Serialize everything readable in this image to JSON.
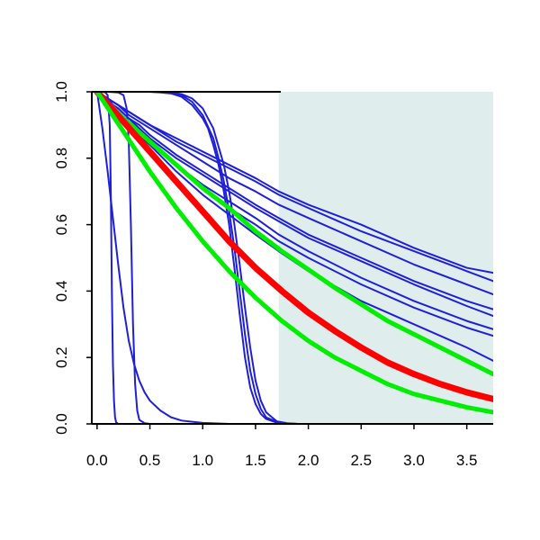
{
  "chart_data": {
    "type": "line",
    "title": "",
    "xlabel": "",
    "ylabel": "",
    "xlim": [
      -0.05,
      3.75
    ],
    "ylim": [
      0.0,
      1.0
    ],
    "x_ticks": [
      "0.0",
      "0.5",
      "1.0",
      "1.5",
      "2.0",
      "2.5",
      "3.0",
      "3.5"
    ],
    "y_ticks": [
      "0.0",
      "0.2",
      "0.4",
      "0.6",
      "0.8",
      "1.0"
    ],
    "shaded_region": {
      "x": [
        1.72,
        3.75
      ],
      "y": [
        0.0,
        1.0
      ],
      "color": "#e0eded"
    },
    "colors": {
      "thin_curves": "#1f1fd8",
      "main_curve": "#ff0000",
      "bound_curves": "#00ee00",
      "axes": "#000000"
    },
    "grid": false,
    "legend": "none",
    "series": [
      {
        "group": "thin",
        "x": [
          0.0,
          0.1,
          0.15,
          0.2,
          0.3,
          0.4,
          0.5,
          0.75,
          1.0,
          1.25,
          1.5,
          1.72,
          2.0,
          2.5,
          3.0,
          3.5,
          3.75
        ],
        "y": [
          1.0,
          0.98,
          0.97,
          0.96,
          0.94,
          0.92,
          0.9,
          0.86,
          0.82,
          0.78,
          0.74,
          0.7,
          0.66,
          0.6,
          0.53,
          0.47,
          0.455
        ]
      },
      {
        "group": "thin",
        "x": [
          0.0,
          0.1,
          0.15,
          0.2,
          0.3,
          0.4,
          0.5,
          0.75,
          1.0,
          1.25,
          1.5,
          1.72,
          2.0,
          2.5,
          3.0,
          3.5,
          3.75
        ],
        "y": [
          1.0,
          0.98,
          0.97,
          0.96,
          0.94,
          0.92,
          0.9,
          0.85,
          0.81,
          0.77,
          0.73,
          0.69,
          0.65,
          0.58,
          0.52,
          0.46,
          0.43
        ]
      },
      {
        "group": "thin",
        "x": [
          0.0,
          0.1,
          0.15,
          0.2,
          0.3,
          0.4,
          0.5,
          0.75,
          1.0,
          1.25,
          1.5,
          1.72,
          2.0,
          2.5,
          3.0,
          3.5,
          3.75
        ],
        "y": [
          1.0,
          0.98,
          0.97,
          0.96,
          0.93,
          0.91,
          0.89,
          0.84,
          0.79,
          0.74,
          0.7,
          0.66,
          0.62,
          0.55,
          0.48,
          0.42,
          0.39
        ]
      },
      {
        "group": "thin",
        "x": [
          0.0,
          0.1,
          0.15,
          0.2,
          0.3,
          0.4,
          0.5,
          0.75,
          1.0,
          1.25,
          1.5,
          1.72,
          2.0,
          2.5,
          3.0,
          3.5,
          3.75
        ],
        "y": [
          1.0,
          0.98,
          0.96,
          0.95,
          0.92,
          0.9,
          0.87,
          0.81,
          0.76,
          0.71,
          0.66,
          0.62,
          0.57,
          0.5,
          0.43,
          0.37,
          0.345
        ]
      },
      {
        "group": "thin",
        "x": [
          0.0,
          0.1,
          0.15,
          0.2,
          0.3,
          0.4,
          0.5,
          0.75,
          1.0,
          1.25,
          1.5,
          1.72,
          2.0,
          2.5,
          3.0,
          3.5,
          3.75
        ],
        "y": [
          1.0,
          0.98,
          0.96,
          0.95,
          0.92,
          0.89,
          0.86,
          0.8,
          0.75,
          0.7,
          0.65,
          0.61,
          0.56,
          0.49,
          0.42,
          0.355,
          0.325
        ]
      },
      {
        "group": "thin",
        "x": [
          0.0,
          0.1,
          0.15,
          0.2,
          0.3,
          0.4,
          0.5,
          0.75,
          1.0,
          1.25,
          1.5,
          1.72,
          2.0,
          2.5,
          3.0,
          3.5,
          3.75
        ],
        "y": [
          1.0,
          0.97,
          0.96,
          0.94,
          0.91,
          0.88,
          0.85,
          0.78,
          0.72,
          0.67,
          0.62,
          0.57,
          0.52,
          0.44,
          0.37,
          0.31,
          0.285
        ]
      },
      {
        "group": "thin",
        "x": [
          0.0,
          0.1,
          0.15,
          0.2,
          0.3,
          0.4,
          0.5,
          0.75,
          1.0,
          1.25,
          1.5,
          1.72,
          2.0,
          2.5,
          3.0,
          3.5,
          3.75
        ],
        "y": [
          1.0,
          0.97,
          0.96,
          0.94,
          0.91,
          0.88,
          0.85,
          0.78,
          0.71,
          0.65,
          0.6,
          0.55,
          0.5,
          0.42,
          0.35,
          0.29,
          0.265
        ]
      },
      {
        "group": "thin",
        "x": [
          0.0,
          0.1,
          0.15,
          0.2,
          0.3,
          0.4,
          0.5,
          0.75,
          1.0,
          1.25,
          1.5,
          1.72,
          2.0,
          2.5,
          3.0,
          3.5,
          3.75
        ],
        "y": [
          1.0,
          0.97,
          0.96,
          0.94,
          0.91,
          0.87,
          0.84,
          0.76,
          0.69,
          0.63,
          0.57,
          0.52,
          0.46,
          0.37,
          0.3,
          0.23,
          0.19
        ]
      },
      {
        "group": "thin",
        "x": [
          0.0,
          0.1,
          0.2,
          0.3,
          0.4,
          0.5,
          0.6,
          0.7,
          0.8,
          0.9,
          1.0,
          1.05,
          1.1,
          1.15,
          1.2,
          1.25,
          1.3,
          1.35,
          1.4,
          1.45,
          1.5,
          1.55,
          1.6,
          1.7,
          1.8,
          1.9,
          2.0,
          3.75
        ],
        "y": [
          1.0,
          1.0,
          1.0,
          1.0,
          1.0,
          1.0,
          0.998,
          0.995,
          0.985,
          0.96,
          0.92,
          0.89,
          0.84,
          0.78,
          0.7,
          0.6,
          0.47,
          0.33,
          0.2,
          0.11,
          0.06,
          0.03,
          0.015,
          0.004,
          0.001,
          0.0,
          0.0,
          0.0
        ]
      },
      {
        "group": "thin",
        "x": [
          0.0,
          0.1,
          0.2,
          0.3,
          0.4,
          0.5,
          0.6,
          0.7,
          0.8,
          0.9,
          1.0,
          1.1,
          1.15,
          1.2,
          1.25,
          1.3,
          1.35,
          1.4,
          1.45,
          1.5,
          1.55,
          1.6,
          1.7,
          1.8,
          1.9,
          2.0,
          3.75
        ],
        "y": [
          1.0,
          1.0,
          1.0,
          1.0,
          1.0,
          1.0,
          0.999,
          0.997,
          0.99,
          0.97,
          0.93,
          0.86,
          0.8,
          0.73,
          0.64,
          0.53,
          0.4,
          0.27,
          0.16,
          0.09,
          0.045,
          0.02,
          0.006,
          0.001,
          0.0,
          0.0,
          0.0
        ]
      },
      {
        "group": "thin",
        "x": [
          0.0,
          0.1,
          0.2,
          0.3,
          0.4,
          0.5,
          0.6,
          0.7,
          0.8,
          0.9,
          1.0,
          1.1,
          1.2,
          1.25,
          1.3,
          1.35,
          1.4,
          1.45,
          1.5,
          1.55,
          1.6,
          1.7,
          1.8,
          1.9,
          2.0,
          3.75
        ],
        "y": [
          1.0,
          1.0,
          1.0,
          1.0,
          1.0,
          1.0,
          1.0,
          0.998,
          0.993,
          0.98,
          0.95,
          0.89,
          0.78,
          0.7,
          0.6,
          0.48,
          0.35,
          0.23,
          0.13,
          0.07,
          0.035,
          0.008,
          0.002,
          0.0,
          0.0,
          0.0
        ]
      },
      {
        "group": "thin",
        "x": [
          0.0,
          0.05,
          0.1,
          0.15,
          0.2,
          0.25,
          0.3,
          0.35,
          0.4,
          0.45,
          0.5,
          0.6,
          0.7,
          0.8,
          1.0,
          1.25,
          1.5,
          3.75
        ],
        "y": [
          1.0,
          0.89,
          0.76,
          0.62,
          0.48,
          0.35,
          0.25,
          0.18,
          0.13,
          0.095,
          0.07,
          0.04,
          0.02,
          0.01,
          0.003,
          0.0,
          0.0,
          0.0
        ]
      },
      {
        "group": "thin",
        "x": [
          0.0,
          0.05,
          0.08,
          0.1,
          0.12,
          0.13,
          0.14,
          0.15,
          0.16,
          0.17,
          0.18,
          0.2,
          3.75
        ],
        "y": [
          1.0,
          1.0,
          0.998,
          0.99,
          0.9,
          0.7,
          0.4,
          0.18,
          0.07,
          0.02,
          0.005,
          0.0,
          0.0
        ]
      },
      {
        "group": "thin",
        "x": [
          0.0,
          0.1,
          0.2,
          0.25,
          0.28,
          0.3,
          0.32,
          0.34,
          0.36,
          0.38,
          0.4,
          0.45,
          0.5,
          3.75
        ],
        "y": [
          1.0,
          1.0,
          0.998,
          0.99,
          0.95,
          0.85,
          0.6,
          0.3,
          0.12,
          0.04,
          0.012,
          0.002,
          0.0,
          0.0
        ]
      },
      {
        "group": "bound",
        "x": [
          0.0,
          0.25,
          0.5,
          0.75,
          1.0,
          1.25,
          1.5,
          1.75,
          2.0,
          2.25,
          2.5,
          2.75,
          3.0,
          3.25,
          3.5,
          3.75
        ],
        "y": [
          1.0,
          0.92,
          0.85,
          0.78,
          0.71,
          0.65,
          0.58,
          0.52,
          0.465,
          0.41,
          0.36,
          0.31,
          0.27,
          0.23,
          0.19,
          0.15
        ]
      },
      {
        "group": "main",
        "x": [
          0.0,
          0.25,
          0.5,
          0.75,
          1.0,
          1.25,
          1.5,
          1.75,
          2.0,
          2.25,
          2.5,
          2.75,
          3.0,
          3.25,
          3.5,
          3.75
        ],
        "y": [
          1.0,
          0.91,
          0.82,
          0.73,
          0.64,
          0.55,
          0.47,
          0.4,
          0.335,
          0.28,
          0.23,
          0.185,
          0.15,
          0.12,
          0.095,
          0.075
        ]
      },
      {
        "group": "bound",
        "x": [
          0.0,
          0.25,
          0.5,
          0.75,
          1.0,
          1.25,
          1.5,
          1.75,
          2.0,
          2.25,
          2.5,
          2.75,
          3.0,
          3.25,
          3.5,
          3.75
        ],
        "y": [
          1.0,
          0.88,
          0.76,
          0.65,
          0.55,
          0.46,
          0.38,
          0.31,
          0.25,
          0.2,
          0.16,
          0.12,
          0.09,
          0.07,
          0.05,
          0.035
        ]
      }
    ]
  }
}
